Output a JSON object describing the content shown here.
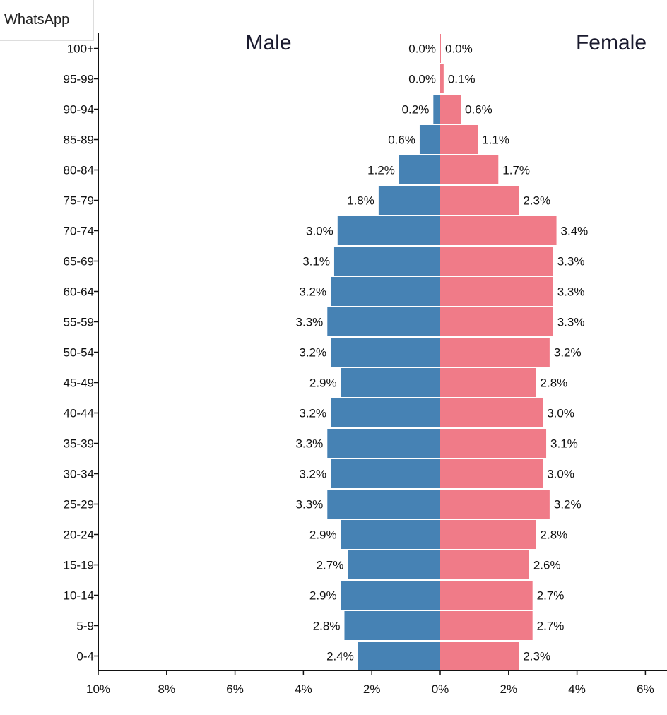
{
  "share_button": {
    "label": "WhatsApp"
  },
  "chart_data": {
    "type": "bar",
    "orientation": "horizontal",
    "subtype": "population-pyramid",
    "categories": [
      "100+",
      "95-99",
      "90-94",
      "85-89",
      "80-84",
      "75-79",
      "70-74",
      "65-69",
      "60-64",
      "55-59",
      "50-54",
      "45-49",
      "40-44",
      "35-39",
      "30-34",
      "25-29",
      "20-24",
      "15-19",
      "10-14",
      "5-9",
      "0-4"
    ],
    "series": [
      {
        "name": "Male",
        "side": "left",
        "color": "#4682b4",
        "values": [
          0.0,
          0.0,
          0.2,
          0.6,
          1.2,
          1.8,
          3.0,
          3.1,
          3.2,
          3.3,
          3.2,
          2.9,
          3.2,
          3.3,
          3.2,
          3.3,
          2.9,
          2.7,
          2.9,
          2.8,
          2.4
        ],
        "labels": [
          "0.0%",
          "0.0%",
          "0.2%",
          "0.6%",
          "1.2%",
          "1.8%",
          "3.0%",
          "3.1%",
          "3.2%",
          "3.3%",
          "3.2%",
          "2.9%",
          "3.2%",
          "3.3%",
          "3.2%",
          "3.3%",
          "2.9%",
          "2.7%",
          "2.9%",
          "2.8%",
          "2.4%"
        ]
      },
      {
        "name": "Female",
        "side": "right",
        "color": "#f07b88",
        "values": [
          0.0,
          0.1,
          0.6,
          1.1,
          1.7,
          2.3,
          3.4,
          3.3,
          3.3,
          3.3,
          3.2,
          2.8,
          3.0,
          3.1,
          3.0,
          3.2,
          2.8,
          2.6,
          2.7,
          2.7,
          2.3
        ],
        "labels": [
          "0.0%",
          "0.1%",
          "0.6%",
          "1.1%",
          "1.7%",
          "2.3%",
          "3.4%",
          "3.3%",
          "3.3%",
          "3.3%",
          "3.2%",
          "2.8%",
          "3.0%",
          "3.1%",
          "3.0%",
          "3.2%",
          "2.8%",
          "2.6%",
          "2.7%",
          "2.7%",
          "2.3%"
        ]
      }
    ],
    "xlim": [
      -10,
      6
    ],
    "x_ticks": [
      -10,
      -8,
      -6,
      -4,
      -2,
      0,
      2,
      4,
      6
    ],
    "x_tick_labels": [
      "10%",
      "8%",
      "6%",
      "4%",
      "2%",
      "0%",
      "2%",
      "4%",
      "6%"
    ],
    "grid": false,
    "legend": "none"
  }
}
